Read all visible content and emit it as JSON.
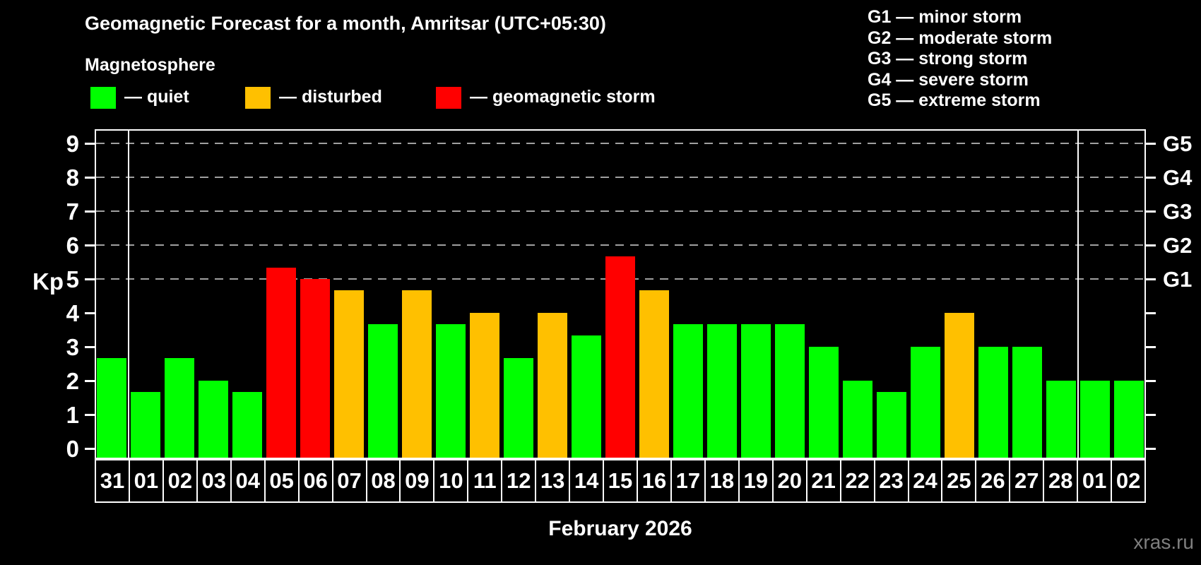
{
  "header": {
    "title": "Geomagnetic Forecast for a month, Amritsar (UTC+05:30)",
    "subtitle": "Magnetosphere",
    "legend_items": [
      {
        "name": "quiet",
        "label": "— quiet",
        "color": "#00ff00"
      },
      {
        "name": "disturbed",
        "label": "— disturbed",
        "color": "#ffc000"
      },
      {
        "name": "storm",
        "label": "— geomagnetic storm",
        "color": "#ff0000"
      }
    ],
    "g_scale_legend": [
      "G1 — minor storm",
      "G2 — moderate storm",
      "G3 — strong storm",
      "G4 — severe storm",
      "G5 — extreme storm"
    ]
  },
  "chart_data": {
    "type": "bar",
    "title": "Geomagnetic Forecast for a month, Amritsar (UTC+05:30)",
    "source_label": "Magnetosphere",
    "xlabel": "February 2026",
    "ylabel": "Kp",
    "ylim": [
      0,
      9
    ],
    "yticks": [
      0,
      1,
      2,
      3,
      4,
      5,
      6,
      7,
      8,
      9
    ],
    "grid": "dashed horizontal lines at Kp 5-9 (storm levels)",
    "gridlines_at_kp": [
      5,
      6,
      7,
      8,
      9
    ],
    "legend_position": "top",
    "right_axis_labels": [
      {
        "kp": 5,
        "label": "G1"
      },
      {
        "kp": 6,
        "label": "G2"
      },
      {
        "kp": 7,
        "label": "G3"
      },
      {
        "kp": 8,
        "label": "G4"
      },
      {
        "kp": 9,
        "label": "G5"
      }
    ],
    "categories": [
      "31",
      "01",
      "02",
      "03",
      "04",
      "05",
      "06",
      "07",
      "08",
      "09",
      "10",
      "11",
      "12",
      "13",
      "14",
      "15",
      "16",
      "17",
      "18",
      "19",
      "20",
      "21",
      "22",
      "23",
      "24",
      "25",
      "26",
      "27",
      "28",
      "01",
      "02"
    ],
    "values": [
      2.67,
      1.67,
      2.67,
      2,
      1.67,
      5.33,
      5,
      4.67,
      3.67,
      4.67,
      3.67,
      4,
      2.67,
      4,
      3.33,
      5.67,
      4.67,
      3.67,
      3.67,
      3.67,
      3.67,
      3,
      2,
      1.67,
      3,
      4,
      3,
      3,
      2,
      2,
      2
    ],
    "statuses": [
      "quiet",
      "quiet",
      "quiet",
      "quiet",
      "quiet",
      "storm",
      "storm",
      "disturbed",
      "quiet",
      "disturbed",
      "quiet",
      "disturbed",
      "quiet",
      "disturbed",
      "quiet",
      "storm",
      "disturbed",
      "quiet",
      "quiet",
      "quiet",
      "quiet",
      "quiet",
      "quiet",
      "quiet",
      "quiet",
      "disturbed",
      "quiet",
      "quiet",
      "quiet",
      "quiet",
      "quiet"
    ],
    "status_colors": {
      "quiet": "#00ff00",
      "disturbed": "#ffc000",
      "storm": "#ff0000"
    },
    "month_boundaries_after_index": [
      0,
      28
    ],
    "watermark": "xras.ru",
    "colors": {
      "background": "#000000",
      "text": "#ffffff",
      "grid": "#a0a0a0",
      "watermark": "#7f7f7f"
    }
  }
}
